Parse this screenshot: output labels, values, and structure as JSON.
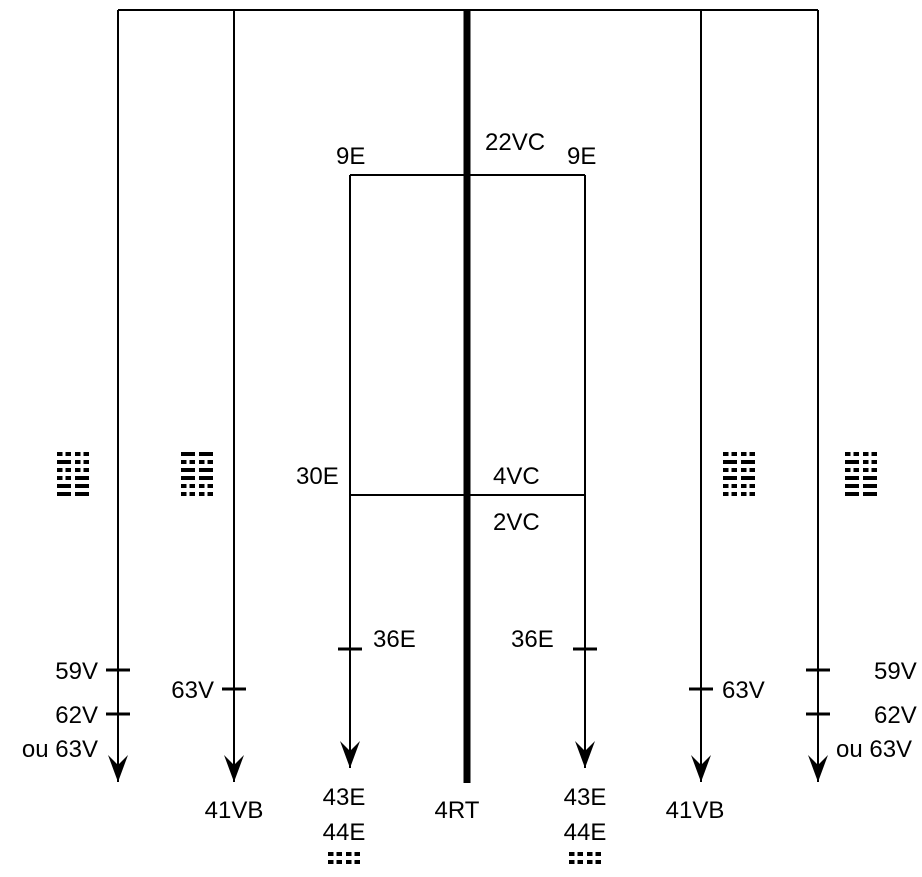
{
  "labels": {
    "top_left_9e": "9E",
    "top_center_22vc": "22VC",
    "top_right_9e": "9E",
    "mid_left_30e": "30E",
    "mid_center_4vc": "4VC",
    "mid_center_2vc": "2VC",
    "left_36e": "36E",
    "right_36e": "36E",
    "far_left_59v": "59V",
    "far_left_62v": "62V",
    "far_left_ou63v": "ou 63V",
    "left_63v": "63V",
    "right_63v": "63V",
    "far_right_59v": "59V",
    "far_right_62v": "62V",
    "far_right_ou63v": "ou 63V",
    "bottom_left_41vb": "41VB",
    "bottom_left_43e": "43E",
    "bottom_left_44e": "44E",
    "bottom_center_4rt": "4RT",
    "bottom_right_43e": "43E",
    "bottom_right_44e": "44E",
    "bottom_right_41vb": "41VB"
  },
  "trigrams": {
    "far_left": [
      [
        0,
        0
      ],
      [
        1,
        0
      ],
      [
        0,
        0
      ],
      [
        0,
        1
      ],
      [
        1,
        1
      ],
      [
        1,
        1
      ]
    ],
    "left": [
      [
        1,
        1
      ],
      [
        0,
        0
      ],
      [
        1,
        1
      ],
      [
        1,
        1
      ],
      [
        0,
        0
      ],
      [
        0,
        0
      ]
    ],
    "right": [
      [
        0,
        0
      ],
      [
        1,
        1
      ],
      [
        0,
        0
      ],
      [
        1,
        1
      ],
      [
        0,
        0
      ],
      [
        0,
        0
      ]
    ],
    "far_right": [
      [
        0,
        0
      ],
      [
        1,
        0
      ],
      [
        0,
        0
      ],
      [
        1,
        1
      ],
      [
        1,
        1
      ],
      [
        1,
        1
      ]
    ],
    "bottom_left": [
      [
        0,
        0
      ],
      [
        0,
        0
      ]
    ],
    "bottom_right": [
      [
        0,
        0
      ],
      [
        0,
        0
      ]
    ]
  },
  "colors": {
    "line": "#000000",
    "background": "#ffffff"
  }
}
